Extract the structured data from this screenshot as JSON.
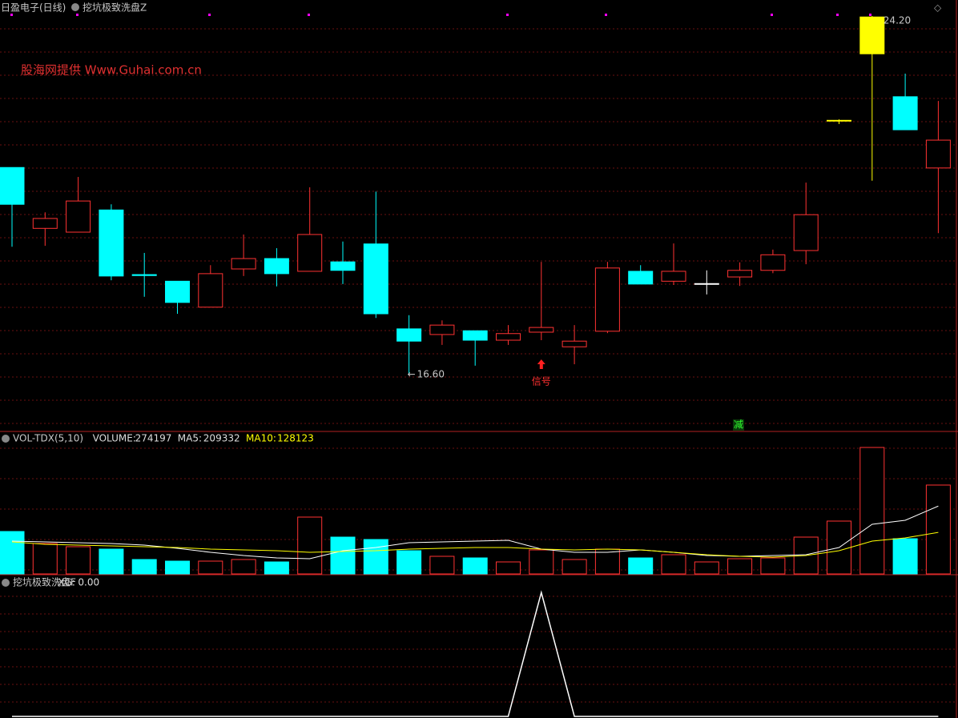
{
  "header": {
    "stock": "日盈电子(日线)",
    "indicator": "挖坑极致洗盘Z"
  },
  "watermark": "股海网提供  Www.Guhai.com.cn",
  "chart_data": [
    {
      "type": "candlestick",
      "ylim": [
        15.43,
        24.54
      ],
      "up_color": "#ff3232",
      "open": [
        20.99,
        19.7,
        19.62,
        20.09,
        18.72,
        18.58,
        18.03,
        18.84,
        19.06,
        18.79,
        18.99,
        19.37,
        17.57,
        17.45,
        17.53,
        17.33,
        17.5,
        17.19,
        17.52,
        18.79,
        18.58,
        18.53,
        18.67,
        18.81,
        19.23,
        21.99,
        23.4,
        22.49,
        20.98
      ],
      "close": [
        20.21,
        19.91,
        20.28,
        18.69,
        18.7,
        18.13,
        18.74,
        19.06,
        18.74,
        19.57,
        18.81,
        17.89,
        17.31,
        17.65,
        17.33,
        17.47,
        17.6,
        17.31,
        18.86,
        18.52,
        18.79,
        18.53,
        18.81,
        19.14,
        19.99,
        21.99,
        24.18,
        21.79,
        21.57
      ],
      "high": [
        20.99,
        20.04,
        20.79,
        20.21,
        19.18,
        18.58,
        18.92,
        19.57,
        19.28,
        20.57,
        19.42,
        20.48,
        17.86,
        17.75,
        17.53,
        17.65,
        18.99,
        17.65,
        18.99,
        18.92,
        19.38,
        18.81,
        18.98,
        19.25,
        20.67,
        22.01,
        24.2,
        22.98,
        22.4
      ],
      "low": [
        19.31,
        19.33,
        19.62,
        18.6,
        18.25,
        17.89,
        18.03,
        18.69,
        18.47,
        18.79,
        18.52,
        17.8,
        16.6,
        17.23,
        16.79,
        17.23,
        17.33,
        16.82,
        17.48,
        18.52,
        18.5,
        18.3,
        18.48,
        18.75,
        18.94,
        21.91,
        20.71,
        21.79,
        19.6
      ],
      "colors": [
        "#00ffff",
        "#ff3232",
        "#ff3232",
        "#00ffff",
        "#00ffff",
        "#00ffff",
        "#ff3232",
        "#ff3232",
        "#00ffff",
        "#ff3232",
        "#00ffff",
        "#00ffff",
        "#00ffff",
        "#ff3232",
        "#00ffff",
        "#ff3232",
        "#ff3232",
        "#ff3232",
        "#ff3232",
        "#00ffff",
        "#ff3232",
        "#ffffff",
        "#ff3232",
        "#ff3232",
        "#ff3232",
        "#ffff00",
        "#ffff00",
        "#00ffff",
        "#ff3232"
      ],
      "high_label": "24.20",
      "low_label": "16.60",
      "signal_label": "信号",
      "reduce_label": "减"
    },
    {
      "type": "volume",
      "ylim": [
        0,
        437190
      ],
      "values": [
        130910,
        93860,
        83980,
        76570,
        44460,
        39520,
        39520,
        44460,
        37050,
        175370,
        113620,
        106210,
        71630,
        54340,
        49400,
        37050,
        74100,
        44460,
        76570,
        49400,
        59280,
        37050,
        46930,
        49400,
        113620,
        163020,
        390260,
        108680,
        274197
      ],
      "series": [
        {
          "name": "MA5",
          "color": "#ffffff",
          "values": [
            101270,
            98800,
            96330,
            93860,
            88920,
            79040,
            66690,
            56810,
            49400,
            46930,
            71630,
            81510,
            96330,
            98800,
            101270,
            103740,
            76570,
            66690,
            66690,
            74100,
            66690,
            56810,
            54340,
            56810,
            59280,
            81510,
            153140,
            165490,
            209332
          ]
        },
        {
          "name": "MA10",
          "color": "#ffff00",
          "values": [
            98800,
            91390,
            88920,
            86450,
            83980,
            81510,
            76570,
            74100,
            71630,
            66690,
            69160,
            71630,
            76570,
            79040,
            81510,
            81510,
            76570,
            74100,
            76570,
            74100,
            66690,
            59280,
            54340,
            51870,
            56810,
            71630,
            101270,
            111150,
            128123
          ]
        }
      ],
      "title": "VOL-TDX(5,10)",
      "readout": [
        {
          "label": "VOLUME:",
          "value": 274197,
          "color": "#dddddd"
        },
        {
          "label": "MA5:",
          "value": 209332,
          "color": "#dddddd"
        },
        {
          "label": "MA10:",
          "value": 128123,
          "color": "#ffff00"
        }
      ]
    },
    {
      "type": "line",
      "ylim": [
        0,
        1.13
      ],
      "color": "#ffffff",
      "values": [
        0,
        0,
        0,
        0,
        0,
        0,
        0,
        0,
        0,
        0,
        0,
        0,
        0,
        0,
        0,
        0,
        1,
        0,
        0,
        0,
        0,
        0,
        0,
        0,
        0,
        0,
        0,
        0,
        0
      ],
      "title": "挖坑极致洗盘F",
      "readout": [
        {
          "label": "XG:",
          "value": 0,
          "value_label": "0.00",
          "color": "#dddddd"
        }
      ]
    }
  ]
}
